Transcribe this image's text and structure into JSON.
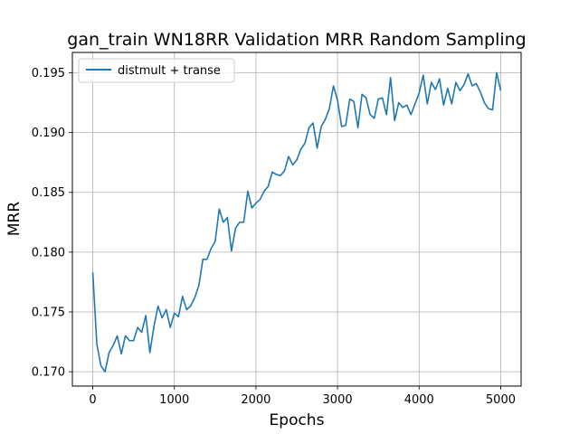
{
  "chart_data": {
    "type": "line",
    "title": "gan_train WN18RR Validation MRR Random Sampling",
    "xlabel": "Epochs",
    "ylabel": "MRR",
    "xlim": [
      -250,
      5250
    ],
    "ylim": [
      0.1688,
      0.1967
    ],
    "xticks": [
      0,
      1000,
      2000,
      3000,
      4000,
      5000
    ],
    "yticks": [
      0.17,
      0.175,
      0.18,
      0.185,
      0.19,
      0.195
    ],
    "xtick_labels": [
      "0",
      "1000",
      "2000",
      "3000",
      "4000",
      "5000"
    ],
    "ytick_labels": [
      "0.170",
      "0.175",
      "0.180",
      "0.185",
      "0.190",
      "0.195"
    ],
    "grid": true,
    "legend_position": "top-left",
    "series": [
      {
        "name": "distmult + transe",
        "color": "#1f77b4",
        "x": [
          0,
          50,
          100,
          150,
          200,
          250,
          300,
          350,
          400,
          450,
          500,
          550,
          600,
          650,
          700,
          750,
          800,
          850,
          900,
          950,
          1000,
          1050,
          1100,
          1150,
          1200,
          1250,
          1300,
          1350,
          1400,
          1450,
          1500,
          1550,
          1600,
          1650,
          1700,
          1750,
          1800,
          1850,
          1900,
          1950,
          2000,
          2050,
          2100,
          2150,
          2200,
          2250,
          2300,
          2350,
          2400,
          2450,
          2500,
          2550,
          2600,
          2650,
          2700,
          2750,
          2800,
          2850,
          2900,
          2950,
          3000,
          3050,
          3100,
          3150,
          3200,
          3250,
          3300,
          3350,
          3400,
          3450,
          3500,
          3550,
          3600,
          3650,
          3700,
          3750,
          3800,
          3850,
          3900,
          3950,
          4000,
          4050,
          4100,
          4150,
          4200,
          4250,
          4300,
          4350,
          4400,
          4450,
          4500,
          4550,
          4600,
          4650,
          4700,
          4750,
          4800,
          4850,
          4900,
          4950,
          5000
        ],
        "values": [
          0.1783,
          0.1723,
          0.1705,
          0.17,
          0.1716,
          0.1722,
          0.173,
          0.1715,
          0.173,
          0.1726,
          0.1726,
          0.1737,
          0.1733,
          0.1747,
          0.1716,
          0.1738,
          0.1755,
          0.1745,
          0.1752,
          0.1737,
          0.1749,
          0.1746,
          0.1763,
          0.1752,
          0.1755,
          0.1762,
          0.1772,
          0.1794,
          0.1794,
          0.1803,
          0.1809,
          0.1836,
          0.1825,
          0.1829,
          0.1801,
          0.182,
          0.1825,
          0.1825,
          0.1851,
          0.1837,
          0.1841,
          0.1844,
          0.1851,
          0.1855,
          0.1867,
          0.1865,
          0.1864,
          0.1868,
          0.188,
          0.1873,
          0.1877,
          0.1886,
          0.1891,
          0.1904,
          0.1908,
          0.1887,
          0.1905,
          0.1911,
          0.192,
          0.1939,
          0.1927,
          0.1905,
          0.1906,
          0.1928,
          0.1926,
          0.1904,
          0.1932,
          0.1929,
          0.1915,
          0.1912,
          0.1928,
          0.1929,
          0.1915,
          0.1946,
          0.191,
          0.1925,
          0.1921,
          0.1923,
          0.1915,
          0.1924,
          0.1933,
          0.1948,
          0.1924,
          0.1942,
          0.1936,
          0.1945,
          0.1923,
          0.1937,
          0.1924,
          0.1942,
          0.1935,
          0.194,
          0.1949,
          0.1939,
          0.1941,
          0.1934,
          0.1925,
          0.192,
          0.1919,
          0.195,
          0.1935
        ]
      }
    ]
  }
}
